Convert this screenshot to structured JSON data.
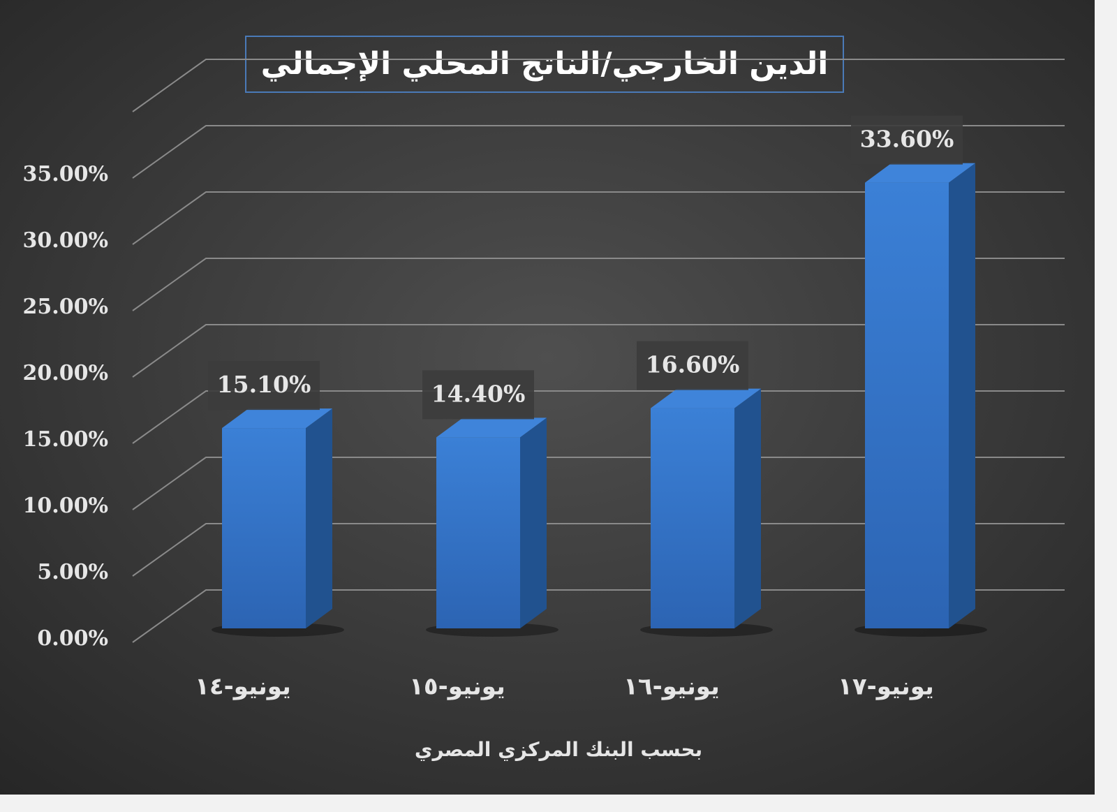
{
  "chart_data": {
    "type": "bar",
    "title": "الدين الخارجي/الناتج المحلي الإجمالي",
    "x_label": "بحسب البنك المركزي المصري",
    "categories": [
      "يونيو-١٤",
      "يونيو-١٥",
      "يونيو-١٦",
      "يونيو-١٧"
    ],
    "values": [
      15.1,
      14.4,
      16.6,
      33.6
    ],
    "value_labels": [
      "15.10%",
      "14.40%",
      "16.60%",
      "33.60%"
    ],
    "color": "#3a7fd5",
    "ylim": [
      0,
      40
    ],
    "yticks": [
      {
        "value": 0,
        "label": "0.00%"
      },
      {
        "value": 5,
        "label": "5.00%"
      },
      {
        "value": 10,
        "label": "10.00%"
      },
      {
        "value": 15,
        "label": "15.00%"
      },
      {
        "value": 20,
        "label": "20.00%"
      },
      {
        "value": 25,
        "label": "25.00%"
      },
      {
        "value": 30,
        "label": "30.00%"
      },
      {
        "value": 35,
        "label": "35.00%"
      }
    ],
    "grid": true
  }
}
